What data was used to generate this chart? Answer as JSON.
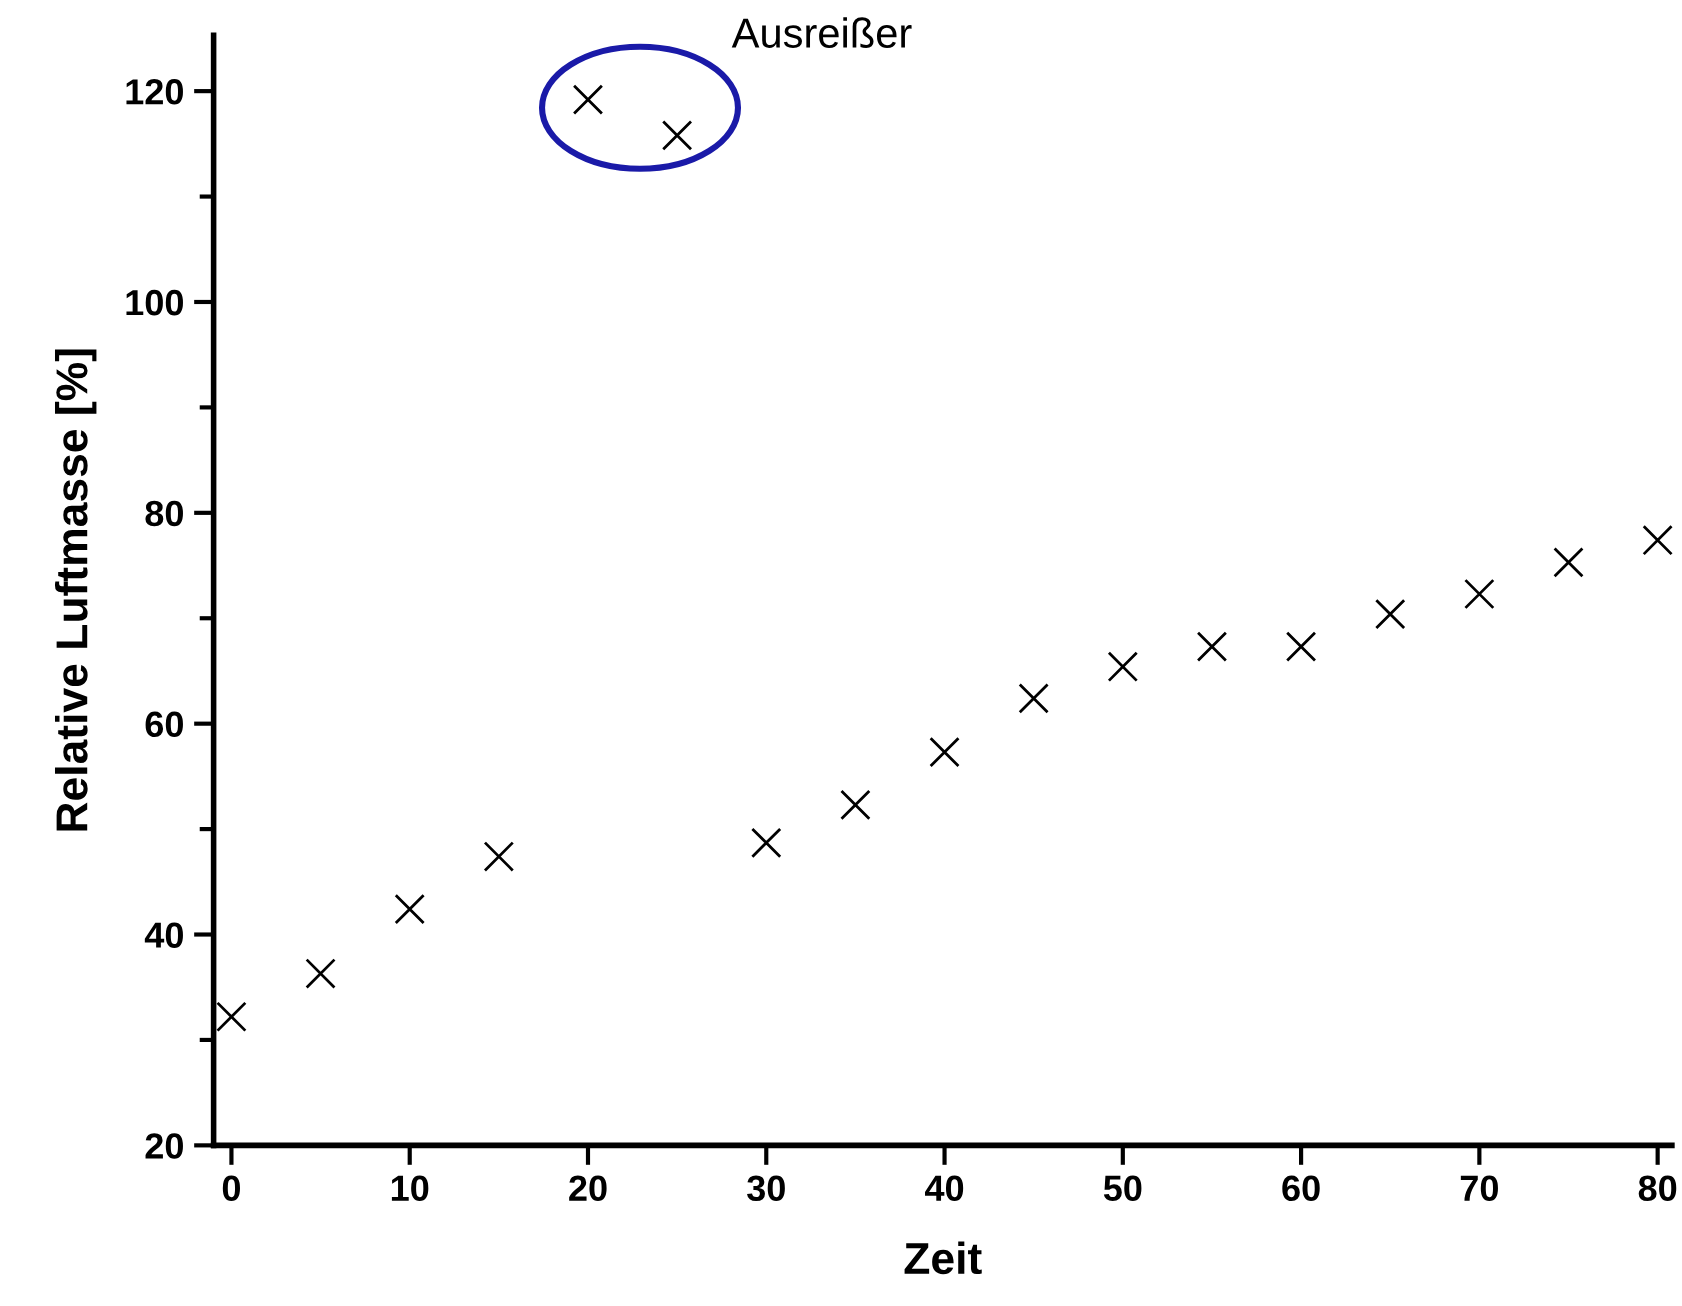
{
  "chart_data": {
    "type": "scatter",
    "xlabel": "Zeit",
    "ylabel": "Relative Luftmasse [%]",
    "x": [
      0,
      5,
      10,
      15,
      20,
      25,
      30,
      35,
      40,
      45,
      50,
      55,
      60,
      65,
      70,
      75,
      80
    ],
    "series": [
      {
        "color": "#000000",
        "values": [
          32.2,
          36.3,
          42.4,
          47.4,
          119.2,
          115.8,
          48.7,
          52.3,
          57.3,
          62.4,
          65.4,
          67.3,
          67.3,
          70.4,
          72.3,
          75.3,
          77.4
        ]
      }
    ],
    "annotations": [
      "Ausreißer"
    ],
    "xlim": [
      -1,
      80.8
    ],
    "ylim": [
      20,
      125.3
    ],
    "xticks": [
      0,
      10,
      20,
      30,
      40,
      50,
      60,
      70,
      80
    ],
    "yticks": [
      20,
      40,
      60,
      80,
      100,
      120
    ],
    "marker": "cross",
    "grid": false,
    "legend": false
  }
}
